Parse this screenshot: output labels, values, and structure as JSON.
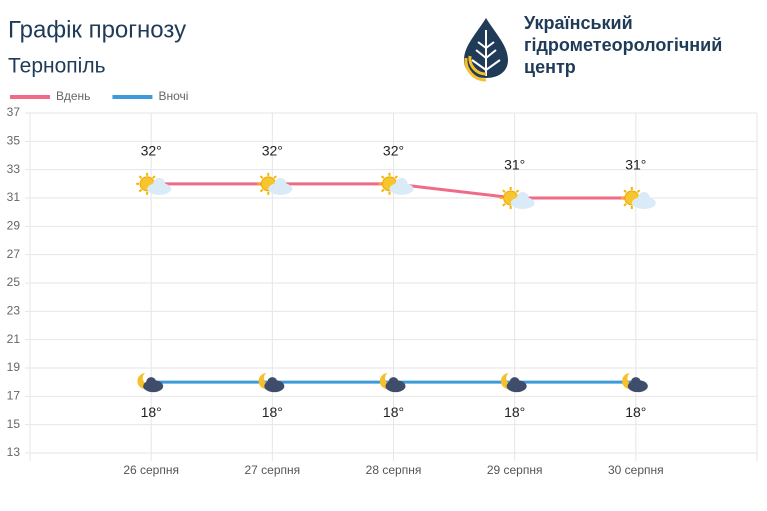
{
  "chart_data": {
    "type": "line",
    "title": "Графік прогнозу",
    "subtitle": "Тернопіль",
    "logo_text": [
      "Український",
      "гідрометеорологічний",
      "центр"
    ],
    "categories": [
      "26 серпня",
      "27 серпня",
      "28 серпня",
      "29 серпня",
      "30 серпня"
    ],
    "series": [
      {
        "name": "Вдень",
        "color": "#ef6b88",
        "values": [
          32,
          32,
          32,
          31,
          31
        ],
        "value_labels": [
          "32°",
          "32°",
          "32°",
          "31°",
          "31°"
        ]
      },
      {
        "name": "Вночі",
        "color": "#3d9bd9",
        "values": [
          18,
          18,
          18,
          18,
          18
        ],
        "value_labels": [
          "18°",
          "18°",
          "18°",
          "18°",
          "18°"
        ]
      }
    ],
    "ylim": [
      13,
      37
    ],
    "yticks": [
      13,
      15,
      17,
      19,
      21,
      23,
      25,
      27,
      29,
      31,
      33,
      35,
      37
    ],
    "grid": true
  }
}
